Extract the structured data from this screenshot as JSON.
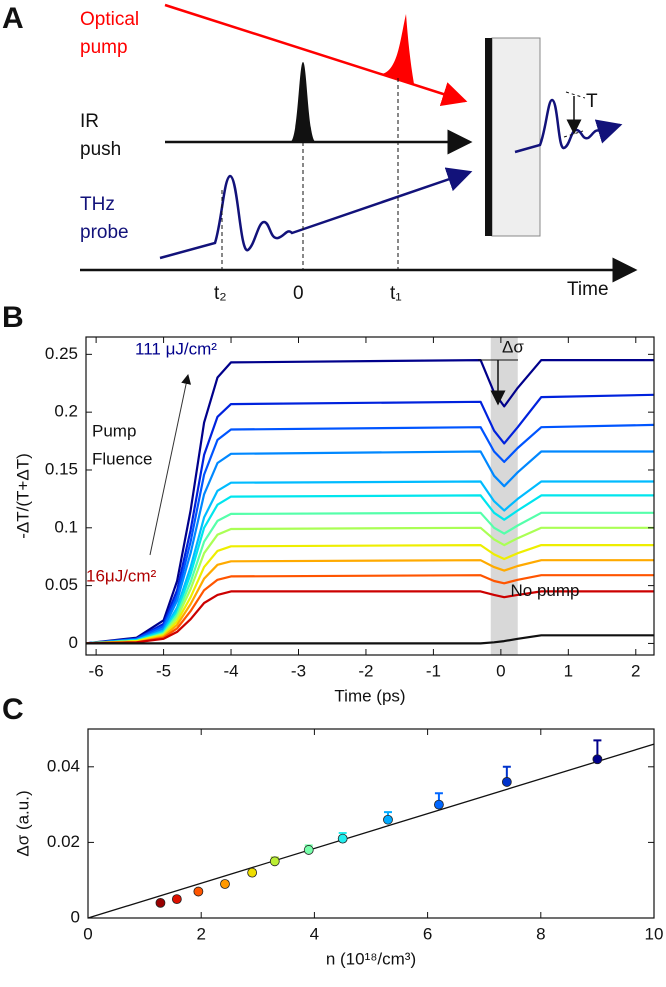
{
  "panel_a": {
    "letter": "A",
    "optical": [
      "Optical",
      "pump"
    ],
    "ir": [
      "IR",
      "push"
    ],
    "thz": [
      "THz",
      "probe"
    ],
    "times": [
      "t₂",
      "0",
      "t₁"
    ],
    "time_label": "Time",
    "t_label": "T"
  },
  "chart_data": [
    {
      "type": "line",
      "letter": "B",
      "xlabel": "Time (ps)",
      "ylabel": "-ΔT/(T+ΔT)",
      "xlim": [
        -6.15,
        2.27
      ],
      "ylim": [
        -0.01,
        0.265
      ],
      "xticks": [
        -6,
        -5,
        -4,
        -3,
        -2,
        -1,
        0,
        1,
        2
      ],
      "yticks": [
        0,
        0.05,
        0.1,
        0.15,
        0.2,
        0.25
      ],
      "shade": [
        -0.15,
        0.25
      ],
      "annotations": [
        "111 μJ/cm²",
        "Δσ",
        "Pump",
        "Fluence",
        "16μJ/cm²"
      ],
      "x": [
        -6.15,
        -5.4,
        -5,
        -4.8,
        -4.6,
        -4.4,
        -4.2,
        -4,
        -0.3,
        -0.1,
        0.05,
        0.25,
        0.6,
        2.27
      ],
      "series": [
        {
          "color": "#00008b",
          "values": [
            0,
            0.005,
            0.02,
            0.054,
            0.115,
            0.191,
            0.23,
            0.243,
            0.245,
            0.217,
            0.205,
            0.221,
            0.245,
            0.245
          ]
        },
        {
          "color": "#0022dd",
          "values": [
            0,
            0.004,
            0.017,
            0.046,
            0.098,
            0.163,
            0.196,
            0.207,
            0.209,
            0.184,
            0.173,
            0.187,
            0.213,
            0.215
          ]
        },
        {
          "color": "#0055ff",
          "values": [
            0,
            0.004,
            0.015,
            0.041,
            0.088,
            0.146,
            0.176,
            0.185,
            0.187,
            0.166,
            0.157,
            0.169,
            0.187,
            0.189
          ]
        },
        {
          "color": "#0088ff",
          "values": [
            0,
            0.003,
            0.013,
            0.037,
            0.078,
            0.129,
            0.156,
            0.164,
            0.166,
            0.145,
            0.136,
            0.148,
            0.166,
            0.166
          ]
        },
        {
          "color": "#00bbff",
          "values": [
            0,
            0.003,
            0.011,
            0.031,
            0.066,
            0.109,
            0.132,
            0.139,
            0.14,
            0.123,
            0.115,
            0.125,
            0.14,
            0.14
          ]
        },
        {
          "color": "#00e5ee",
          "values": [
            0,
            0.003,
            0.01,
            0.028,
            0.06,
            0.1,
            0.12,
            0.127,
            0.128,
            0.113,
            0.107,
            0.115,
            0.128,
            0.128
          ]
        },
        {
          "color": "#55ffaa",
          "values": [
            0,
            0.002,
            0.009,
            0.025,
            0.053,
            0.088,
            0.106,
            0.112,
            0.113,
            0.1,
            0.095,
            0.102,
            0.113,
            0.113
          ]
        },
        {
          "color": "#aaff55",
          "values": [
            0,
            0.002,
            0.008,
            0.022,
            0.047,
            0.078,
            0.094,
            0.099,
            0.1,
            0.09,
            0.085,
            0.091,
            0.1,
            0.1
          ]
        },
        {
          "color": "#eeee00",
          "values": [
            0,
            0.002,
            0.007,
            0.019,
            0.04,
            0.066,
            0.08,
            0.084,
            0.085,
            0.077,
            0.073,
            0.078,
            0.085,
            0.085
          ]
        },
        {
          "color": "#ffaa00",
          "values": [
            0,
            0.001,
            0.006,
            0.016,
            0.034,
            0.056,
            0.068,
            0.071,
            0.072,
            0.066,
            0.063,
            0.067,
            0.072,
            0.072
          ]
        },
        {
          "color": "#ff5500",
          "values": [
            0,
            0.001,
            0.005,
            0.013,
            0.028,
            0.046,
            0.055,
            0.058,
            0.059,
            0.054,
            0.052,
            0.055,
            0.059,
            0.059
          ]
        },
        {
          "color": "#cc0000",
          "values": [
            0,
            0.001,
            0.004,
            0.01,
            0.021,
            0.035,
            0.042,
            0.045,
            0.045,
            0.042,
            0.04,
            0.042,
            0.045,
            0.045
          ]
        },
        {
          "name": "No pump",
          "color": "#111111",
          "values": [
            0,
            0,
            0,
            0,
            0,
            0,
            0,
            0,
            0,
            0.001,
            0.002,
            0.004,
            0.007,
            0.007
          ]
        }
      ]
    },
    {
      "type": "scatter",
      "letter": "C",
      "xlabel": "n (10¹⁸/cm³)",
      "ylabel": "Δσ (a.u.)",
      "xlim": [
        0,
        10
      ],
      "ylim": [
        0,
        0.05
      ],
      "xticks": [
        0,
        2,
        4,
        6,
        8,
        10
      ],
      "yticks": [
        0,
        0.02,
        0.04
      ],
      "x": [
        1.28,
        1.57,
        1.95,
        2.42,
        2.9,
        3.3,
        3.9,
        4.5,
        5.3,
        6.2,
        7.4,
        9.0
      ],
      "values": [
        0.004,
        0.005,
        0.007,
        0.009,
        0.012,
        0.015,
        0.018,
        0.021,
        0.026,
        0.03,
        0.036,
        0.042
      ],
      "errors": [
        0.0005,
        0.0005,
        0.0005,
        0.0006,
        0.0007,
        0.001,
        0.0012,
        0.0015,
        0.002,
        0.003,
        0.004,
        0.005
      ],
      "colors": [
        "#990000",
        "#dd1100",
        "#ff5500",
        "#ff9900",
        "#eedd00",
        "#bbee33",
        "#77ffaa",
        "#22eeee",
        "#00aaff",
        "#0066ff",
        "#0033cc",
        "#00008b"
      ],
      "fit": {
        "x": [
          0,
          10
        ],
        "y": [
          0,
          0.046
        ],
        "color": "#111111"
      }
    }
  ]
}
